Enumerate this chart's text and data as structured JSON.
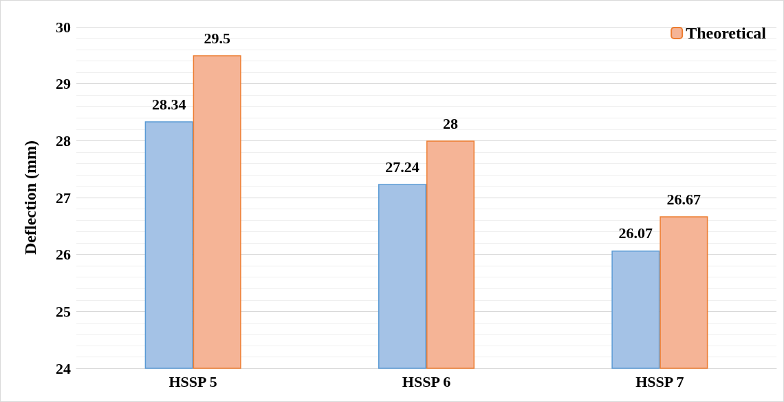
{
  "chart_data": {
    "type": "bar",
    "ylabel": "Deflection (mm)",
    "categories": [
      "HSSP 5",
      "HSSP 6",
      "HSSP 7"
    ],
    "series": [
      {
        "color": "#a4c2e6",
        "values": [
          28.34,
          27.24,
          26.07
        ]
      },
      {
        "name": "Theoretical",
        "color": "#f5b496",
        "values": [
          29.5,
          28,
          26.67
        ]
      }
    ],
    "ylim": [
      24,
      30
    ],
    "yticks": [
      24,
      25,
      26,
      27,
      28,
      29,
      30
    ],
    "grid": true,
    "legend": "top right",
    "data_labels": true
  }
}
